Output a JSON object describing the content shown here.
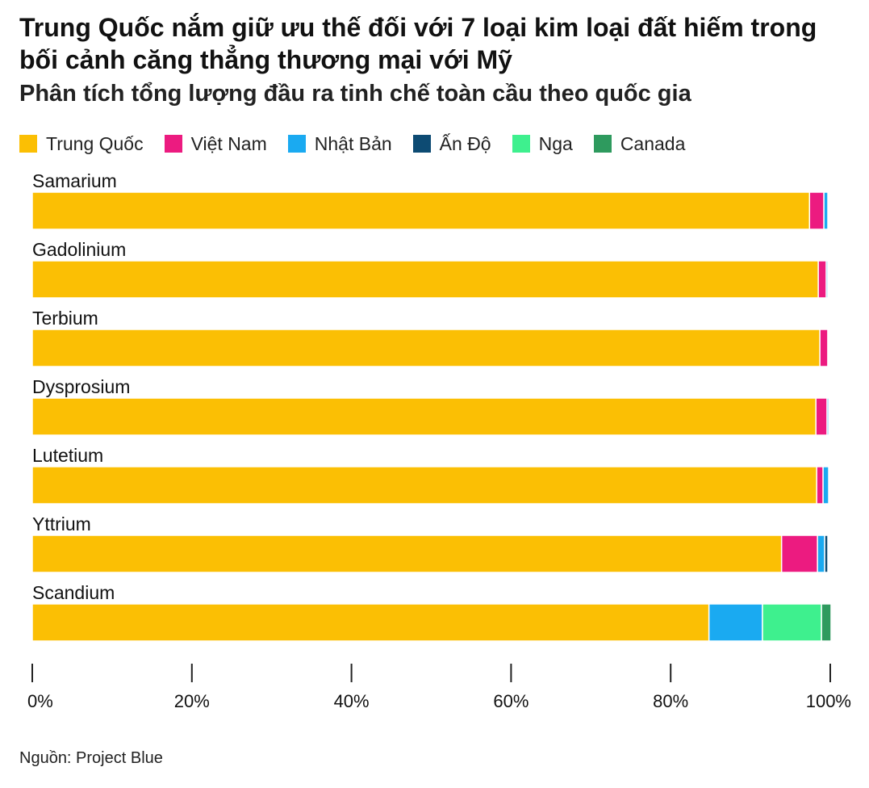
{
  "header": {
    "title": "Trung Quốc nắm giữ ưu thế đối với 7 loại kim loại đất hiếm trong bối cảnh căng thẳng thương mại với Mỹ",
    "subtitle": "Phân tích tổng lượng đầu ra tinh chế toàn cầu theo quốc gia"
  },
  "footer": {
    "source": "Nguồn: Project Blue"
  },
  "chart_data": {
    "type": "bar",
    "orientation": "horizontal",
    "stacked": true,
    "categories": [
      "Samarium",
      "Gadolinium",
      "Terbium",
      "Dysprosium",
      "Lutetium",
      "Yttrium",
      "Scandium"
    ],
    "series": [
      {
        "name": "Trung Quốc",
        "color": "#FBBF04",
        "values": [
          97.4,
          98.5,
          98.7,
          98.2,
          98.3,
          93.9,
          84.8
        ]
      },
      {
        "name": "Việt Nam",
        "color": "#EC1B80",
        "values": [
          1.8,
          1.0,
          1.0,
          1.4,
          0.8,
          4.5,
          0
        ]
      },
      {
        "name": "Nhật Bản",
        "color": "#1AAAF1",
        "values": [
          0.5,
          0.2,
          0.1,
          0.2,
          0.7,
          0.9,
          6.7
        ]
      },
      {
        "name": "Ấn Độ",
        "color": "#0D4B73",
        "values": [
          0,
          0.1,
          0,
          0,
          0,
          0.4,
          0
        ]
      },
      {
        "name": "Nga",
        "color": "#3EF08E",
        "values": [
          0,
          0,
          0,
          0,
          0,
          0,
          7.4
        ]
      },
      {
        "name": "Canada",
        "color": "#2E9A5E",
        "values": [
          0,
          0,
          0,
          0,
          0,
          0,
          1.2
        ]
      }
    ],
    "xlim": [
      0,
      100
    ],
    "xticks": [
      0,
      20,
      40,
      60,
      80,
      100
    ],
    "xtick_labels": [
      "0%",
      "20%",
      "40%",
      "60%",
      "80%",
      "100%"
    ],
    "legend_position": "top-left",
    "grid": false
  }
}
